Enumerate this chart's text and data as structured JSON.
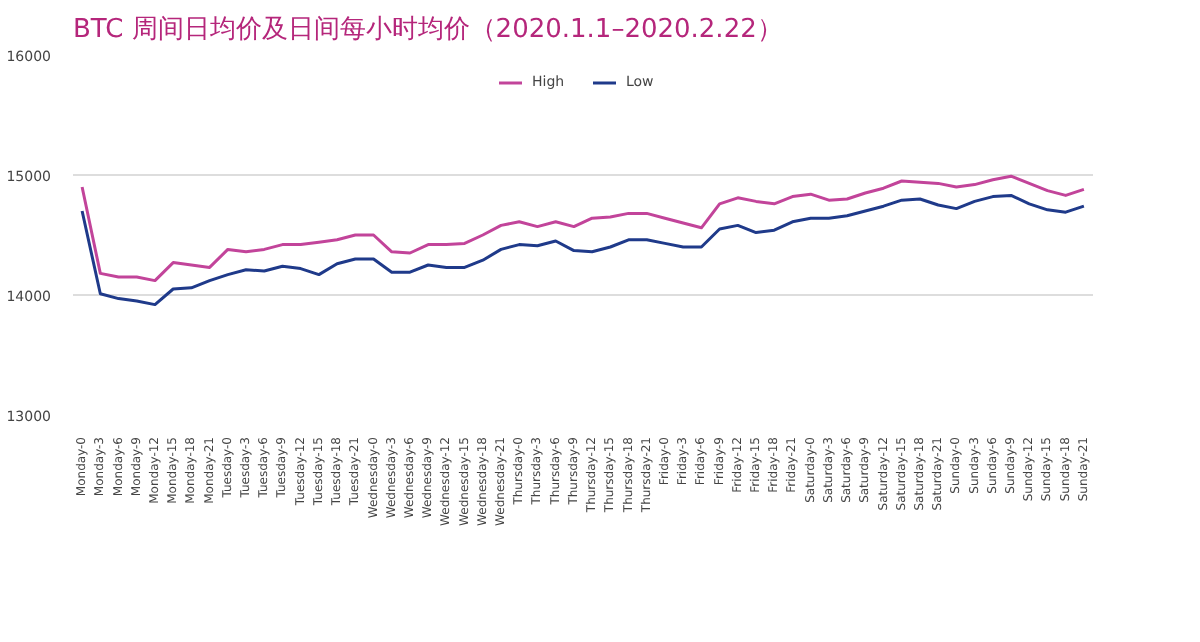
{
  "chart_data": {
    "type": "line",
    "title": "BTC 周间日均价及日间每小时均价（2020.1.1–2020.2.22）",
    "categories": [
      "Monday-0",
      "Monday-3",
      "Monday-6",
      "Monday-9",
      "Monday-12",
      "Monday-15",
      "Monday-18",
      "Monday-21",
      "Tuesday-0",
      "Tuesday-3",
      "Tuesday-6",
      "Tuesday-9",
      "Tuesday-12",
      "Tuesday-15",
      "Tuesday-18",
      "Tuesday-21",
      "Wednesday-0",
      "Wednesday-3",
      "Wednesday-6",
      "Wednesday-9",
      "Wednesday-12",
      "Wednesday-15",
      "Wednesday-18",
      "Wednesday-21",
      "Thursday-0",
      "Thursday-3",
      "Thursday-6",
      "Thursday-9",
      "Thursday-12",
      "Thursday-15",
      "Thursday-18",
      "Thursday-21",
      "Friday-0",
      "Friday-3",
      "Friday-6",
      "Friday-9",
      "Friday-12",
      "Friday-15",
      "Friday-18",
      "Friday-21",
      "Saturday-0",
      "Saturday-3",
      "Saturday-6",
      "Saturday-9",
      "Saturday-12",
      "Saturday-15",
      "Saturday-18",
      "Saturday-21",
      "Sunday-0",
      "Sunday-3",
      "Sunday-6",
      "Sunday-9",
      "Sunday-12",
      "Sunday-15",
      "Sunday-18",
      "Sunday-21"
    ],
    "series": [
      {
        "name": "High",
        "color": "#c2449a",
        "values": [
          14900,
          14180,
          14150,
          14150,
          14120,
          14270,
          14250,
          14230,
          14380,
          14360,
          14380,
          14420,
          14420,
          14440,
          14460,
          14500,
          14500,
          14360,
          14350,
          14420,
          14420,
          14430,
          14500,
          14580,
          14610,
          14570,
          14610,
          14570,
          14640,
          14650,
          14680,
          14680,
          14640,
          14600,
          14560,
          14760,
          14810,
          14780,
          14760,
          14820,
          14840,
          14790,
          14800,
          14850,
          14890,
          14950,
          14940,
          14930,
          14900,
          14920,
          14960,
          14990,
          14930,
          14870,
          14830,
          14880
        ]
      },
      {
        "name": "Low",
        "color": "#1f3a8a",
        "values": [
          14700,
          14010,
          13970,
          13950,
          13920,
          14050,
          14060,
          14120,
          14170,
          14210,
          14200,
          14240,
          14220,
          14170,
          14260,
          14300,
          14300,
          14190,
          14190,
          14250,
          14230,
          14230,
          14290,
          14380,
          14420,
          14410,
          14450,
          14370,
          14360,
          14400,
          14460,
          14460,
          14430,
          14400,
          14400,
          14550,
          14580,
          14520,
          14540,
          14610,
          14640,
          14640,
          14660,
          14700,
          14740,
          14790,
          14800,
          14750,
          14720,
          14780,
          14820,
          14830,
          14760,
          14710,
          14690,
          14740
        ]
      }
    ],
    "ylim": [
      13000,
      16000
    ],
    "yticks": [
      13000,
      14000,
      15000,
      16000
    ],
    "grid": "y",
    "legend": "top",
    "marker": "none",
    "line_style": "solid"
  }
}
